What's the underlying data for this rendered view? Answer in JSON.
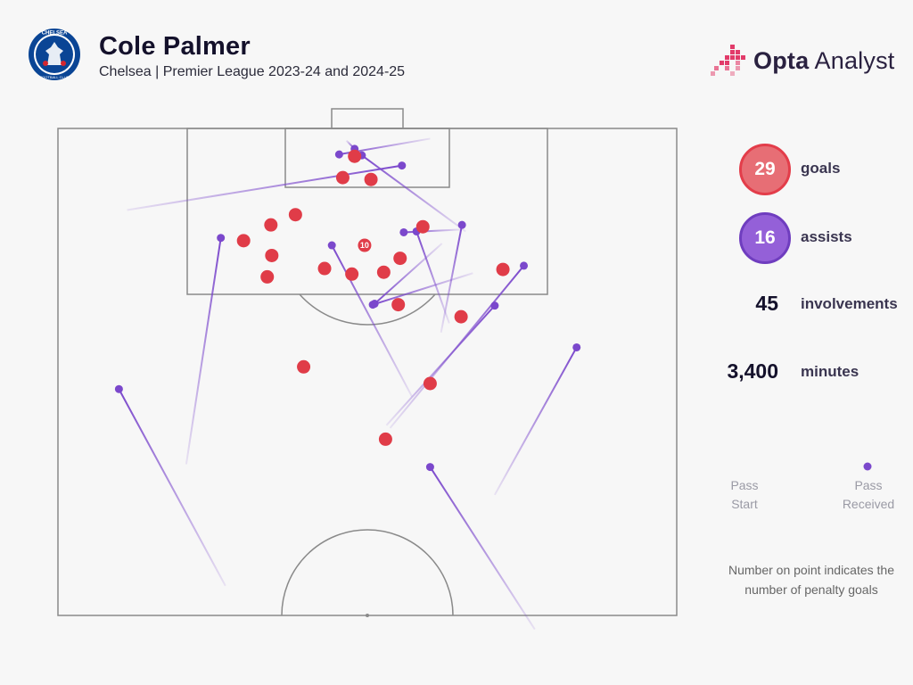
{
  "header": {
    "title": "Cole Palmer",
    "subtitle": "Chelsea | Premier League 2023-24 and 2024-25",
    "crest_text": "CHELSEA",
    "crest_ring_text": "FOOTBALL CLUB",
    "brand_bold": "Opta",
    "brand_light": " Analyst"
  },
  "stats": {
    "goals_value": "29",
    "goals_label": "goals",
    "assists_value": "16",
    "assists_label": "assists",
    "involvements_value": "45",
    "involvements_label": "involvements",
    "minutes_value": "3,400",
    "minutes_label": "minutes"
  },
  "legend": {
    "start_line1": "Pass",
    "start_line2": "Start",
    "received_line1": "Pass",
    "received_line2": "Received",
    "note": "Number on point indicates the number of penalty goals"
  },
  "colors": {
    "goal": "#e03c48",
    "assist": "#7b48cc",
    "pitch_line": "#8a8a8a",
    "background": "#f7f7f7"
  },
  "chart_data": {
    "type": "scatter",
    "title": "Cole Palmer",
    "subtitle": "Chelsea | Premier League 2023-24 and 2024-25",
    "description_units": "Pitch coordinates in metres: x from left touchline (0-68), y from goal line toward halfway (0-52.5)",
    "goals": [
      {
        "x": 32.6,
        "y": 3.0
      },
      {
        "x": 31.3,
        "y": 5.3
      },
      {
        "x": 34.4,
        "y": 5.5
      },
      {
        "x": 26.1,
        "y": 9.3
      },
      {
        "x": 23.4,
        "y": 10.4
      },
      {
        "x": 40.1,
        "y": 10.6
      },
      {
        "x": 20.4,
        "y": 12.1
      },
      {
        "x": 33.7,
        "y": 12.6,
        "penalty_goals": 10
      },
      {
        "x": 23.5,
        "y": 13.7
      },
      {
        "x": 37.6,
        "y": 14.0
      },
      {
        "x": 29.3,
        "y": 15.1
      },
      {
        "x": 35.8,
        "y": 15.5
      },
      {
        "x": 32.3,
        "y": 15.7
      },
      {
        "x": 48.9,
        "y": 15.2
      },
      {
        "x": 23.0,
        "y": 16.0
      },
      {
        "x": 37.4,
        "y": 19.0
      },
      {
        "x": 44.3,
        "y": 20.3
      },
      {
        "x": 27.0,
        "y": 25.7
      },
      {
        "x": 40.9,
        "y": 27.5
      },
      {
        "x": 36.0,
        "y": 33.5
      }
    ],
    "assists": [
      {
        "start": {
          "x": 40.9,
          "y": 1.1
        },
        "end": {
          "x": 30.9,
          "y": 2.8
        }
      },
      {
        "start": {
          "x": 31.7,
          "y": 1.3
        },
        "end": {
          "x": 32.6,
          "y": 2.2
        }
      },
      {
        "start": {
          "x": 7.6,
          "y": 8.8
        },
        "end": {
          "x": 37.8,
          "y": 4.0
        }
      },
      {
        "start": {
          "x": 44.8,
          "y": 11.1
        },
        "end": {
          "x": 33.4,
          "y": 2.9
        }
      },
      {
        "start": {
          "x": 14.1,
          "y": 36.2
        },
        "end": {
          "x": 17.9,
          "y": 11.8
        }
      },
      {
        "start": {
          "x": 42.1,
          "y": 22.0
        },
        "end": {
          "x": 44.4,
          "y": 10.4
        }
      },
      {
        "start": {
          "x": 43.0,
          "y": 21.0
        },
        "end": {
          "x": 39.4,
          "y": 11.1
        }
      },
      {
        "start": {
          "x": 44.3,
          "y": 10.9
        },
        "end": {
          "x": 38.0,
          "y": 11.2
        }
      },
      {
        "start": {
          "x": 38.9,
          "y": 28.9
        },
        "end": {
          "x": 30.1,
          "y": 12.6
        }
      },
      {
        "start": {
          "x": 45.6,
          "y": 15.6
        },
        "end": {
          "x": 34.6,
          "y": 19.0
        }
      },
      {
        "start": {
          "x": 36.1,
          "y": 32.0
        },
        "end": {
          "x": 48.0,
          "y": 19.1
        }
      },
      {
        "start": {
          "x": 42.2,
          "y": 12.4
        },
        "end": {
          "x": 34.8,
          "y": 18.9
        }
      },
      {
        "start": {
          "x": 36.5,
          "y": 32.3
        },
        "end": {
          "x": 51.2,
          "y": 14.8
        }
      },
      {
        "start": {
          "x": 48.0,
          "y": 39.5
        },
        "end": {
          "x": 57.0,
          "y": 23.6
        }
      },
      {
        "start": {
          "x": 18.4,
          "y": 49.3
        },
        "end": {
          "x": 6.7,
          "y": 28.1
        }
      },
      {
        "start": {
          "x": 52.4,
          "y": 54.0
        },
        "end": {
          "x": 40.9,
          "y": 36.5
        }
      }
    ]
  }
}
